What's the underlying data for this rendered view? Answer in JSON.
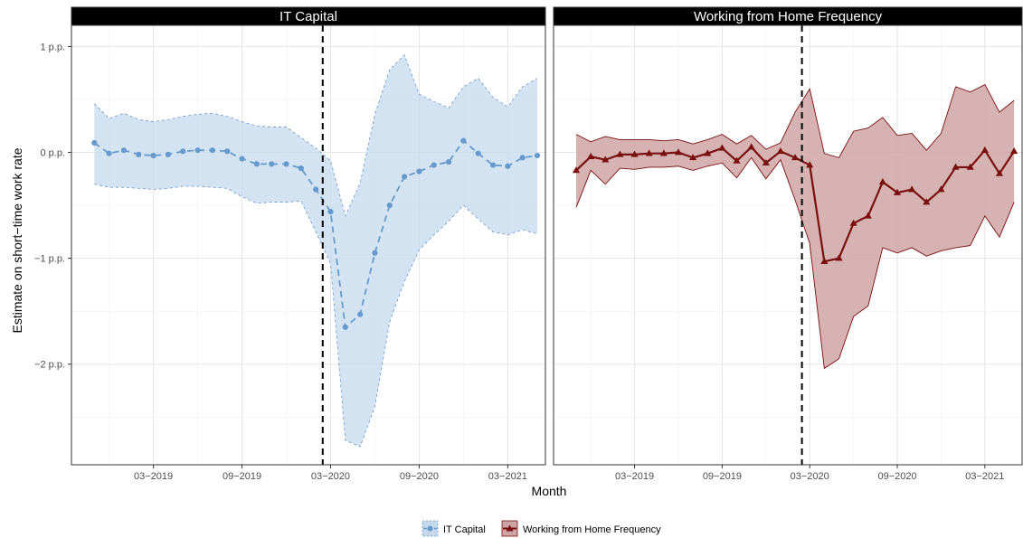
{
  "chart_data": {
    "type": "line",
    "xlabel": "Month",
    "ylabel": "Estimate on short−time work rate",
    "x_tick_labels": [
      "03−2019",
      "09−2019",
      "03−2020",
      "09−2020",
      "03−2021"
    ],
    "x_tick_values": [
      "2019-03",
      "2019-09",
      "2020-03",
      "2020-09",
      "2021-03"
    ],
    "y_tick_labels": [
      "1 p.p.",
      "0 p.p.",
      "−1 p.p.",
      "−2 p.p."
    ],
    "y_tick_values": [
      1,
      0,
      -1,
      -2
    ],
    "ylim": [
      -2.95,
      1.2
    ],
    "xlim": [
      "2018-10",
      "2021-05"
    ],
    "reference_line": {
      "x": "2020-02-15",
      "style": "dashed",
      "color": "#000000"
    },
    "grid": true,
    "legend_position": "bottom",
    "panels": [
      {
        "title": "IT Capital",
        "series": [
          {
            "name": "IT Capital",
            "color": "#6699cc",
            "fill": "#c6d9ec",
            "line_style": "dashed",
            "marker": "circle",
            "x": [
              "2018-11",
              "2018-12",
              "2019-01",
              "2019-02",
              "2019-03",
              "2019-04",
              "2019-05",
              "2019-06",
              "2019-07",
              "2019-08",
              "2019-09",
              "2019-10",
              "2019-11",
              "2019-12",
              "2020-01",
              "2020-02",
              "2020-03",
              "2020-04",
              "2020-05",
              "2020-06",
              "2020-07",
              "2020-08",
              "2020-09",
              "2020-10",
              "2020-11",
              "2020-12",
              "2021-01",
              "2021-02",
              "2021-03",
              "2021-04",
              "2021-05"
            ],
            "y": [
              0.09,
              -0.01,
              0.02,
              -0.02,
              -0.03,
              -0.02,
              0.01,
              0.02,
              0.02,
              0.01,
              -0.06,
              -0.11,
              -0.11,
              -0.11,
              -0.15,
              -0.35,
              -0.56,
              -1.65,
              -1.53,
              -0.95,
              -0.5,
              -0.23,
              -0.18,
              -0.12,
              -0.09,
              0.11,
              -0.01,
              -0.12,
              -0.13,
              -0.05,
              -0.03
            ],
            "lower": [
              -0.3,
              -0.33,
              -0.33,
              -0.34,
              -0.35,
              -0.34,
              -0.32,
              -0.32,
              -0.33,
              -0.34,
              -0.42,
              -0.48,
              -0.47,
              -0.47,
              -0.46,
              -0.75,
              -1.05,
              -2.72,
              -2.78,
              -2.4,
              -1.6,
              -1.22,
              -0.92,
              -0.78,
              -0.65,
              -0.5,
              -0.63,
              -0.75,
              -0.78,
              -0.73,
              -0.77
            ],
            "upper": [
              0.46,
              0.32,
              0.37,
              0.31,
              0.29,
              0.31,
              0.34,
              0.36,
              0.37,
              0.34,
              0.29,
              0.25,
              0.24,
              0.24,
              0.14,
              0.04,
              -0.08,
              -0.6,
              -0.29,
              0.36,
              0.78,
              0.92,
              0.55,
              0.48,
              0.42,
              0.62,
              0.7,
              0.52,
              0.43,
              0.62,
              0.7
            ]
          }
        ]
      },
      {
        "title": "Working from Home Frequency",
        "series": [
          {
            "name": "Working from Home Frequency",
            "color": "#7a0f0f",
            "fill": "#cfa4a4",
            "line_style": "solid",
            "marker": "triangle",
            "x": [
              "2018-11",
              "2018-12",
              "2019-01",
              "2019-02",
              "2019-03",
              "2019-04",
              "2019-05",
              "2019-06",
              "2019-07",
              "2019-08",
              "2019-09",
              "2019-10",
              "2019-11",
              "2019-12",
              "2020-01",
              "2020-02",
              "2020-03",
              "2020-04",
              "2020-05",
              "2020-06",
              "2020-07",
              "2020-08",
              "2020-09",
              "2020-10",
              "2020-11",
              "2020-12",
              "2021-01",
              "2021-02",
              "2021-03",
              "2021-04",
              "2021-05"
            ],
            "y": [
              -0.17,
              -0.04,
              -0.07,
              -0.02,
              -0.02,
              -0.01,
              -0.01,
              0.0,
              -0.05,
              -0.01,
              0.04,
              -0.08,
              0.05,
              -0.1,
              0.01,
              -0.05,
              -0.12,
              -1.03,
              -1.0,
              -0.67,
              -0.6,
              -0.28,
              -0.38,
              -0.35,
              -0.47,
              -0.35,
              -0.14,
              -0.14,
              0.02,
              -0.2,
              0.01
            ],
            "lower": [
              -0.52,
              -0.17,
              -0.3,
              -0.15,
              -0.16,
              -0.14,
              -0.14,
              -0.13,
              -0.17,
              -0.13,
              -0.1,
              -0.24,
              -0.05,
              -0.25,
              -0.07,
              -0.45,
              -0.86,
              -2.04,
              -1.95,
              -1.55,
              -1.45,
              -0.9,
              -0.95,
              -0.9,
              -0.98,
              -0.93,
              -0.9,
              -0.88,
              -0.6,
              -0.8,
              -0.47
            ],
            "upper": [
              0.17,
              0.1,
              0.15,
              0.12,
              0.12,
              0.12,
              0.11,
              0.12,
              0.08,
              0.12,
              0.17,
              0.08,
              0.16,
              0.03,
              0.09,
              0.38,
              0.6,
              -0.01,
              -0.05,
              0.2,
              0.23,
              0.33,
              0.16,
              0.18,
              0.02,
              0.18,
              0.62,
              0.57,
              0.64,
              0.38,
              0.49
            ]
          }
        ]
      }
    ]
  }
}
